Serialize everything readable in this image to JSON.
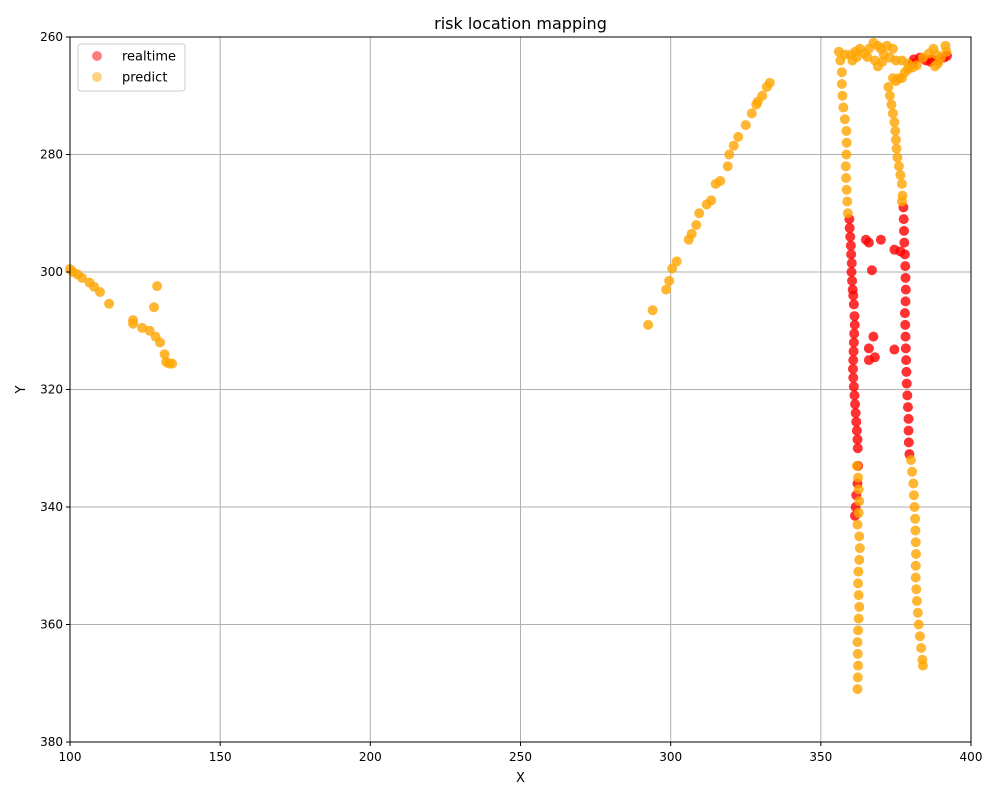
{
  "chart_data": {
    "type": "scatter",
    "title": "risk location mapping",
    "xlabel": "X",
    "ylabel": "Y",
    "xlim": [
      100,
      400
    ],
    "ylim": [
      380,
      260
    ],
    "y_inverted": true,
    "grid": true,
    "legend_position": "top-left",
    "xticks": [
      100,
      150,
      200,
      250,
      300,
      350,
      400
    ],
    "yticks": [
      260,
      280,
      300,
      320,
      340,
      360,
      380
    ],
    "series": [
      {
        "name": "realtime",
        "color": "#ff0000",
        "points": [
          [
            359.5,
            291
          ],
          [
            359.6,
            292.5
          ],
          [
            359.8,
            294
          ],
          [
            360.0,
            295.5
          ],
          [
            360.1,
            297
          ],
          [
            360.3,
            298.5
          ],
          [
            360.2,
            300
          ],
          [
            360.4,
            301.5
          ],
          [
            360.6,
            303
          ],
          [
            360.8,
            304
          ],
          [
            361.0,
            305.5
          ],
          [
            361.2,
            307.5
          ],
          [
            361.3,
            309
          ],
          [
            361.1,
            310.5
          ],
          [
            361.0,
            312
          ],
          [
            360.9,
            313.5
          ],
          [
            360.8,
            315
          ],
          [
            360.7,
            316.5
          ],
          [
            360.8,
            318
          ],
          [
            361.0,
            319.5
          ],
          [
            361.2,
            321
          ],
          [
            361.4,
            322.5
          ],
          [
            361.6,
            324
          ],
          [
            361.8,
            325.5
          ],
          [
            362.0,
            327
          ],
          [
            362.2,
            328.5
          ],
          [
            362.3,
            330
          ],
          [
            362.4,
            333
          ],
          [
            362.2,
            336
          ],
          [
            361.8,
            338
          ],
          [
            361.6,
            340
          ],
          [
            361.4,
            341.5
          ],
          [
            377.5,
            289
          ],
          [
            377.6,
            291
          ],
          [
            377.7,
            293
          ],
          [
            377.8,
            295
          ],
          [
            378.0,
            297
          ],
          [
            378.1,
            299
          ],
          [
            378.2,
            301
          ],
          [
            378.3,
            303
          ],
          [
            378.2,
            305
          ],
          [
            378.0,
            307
          ],
          [
            378.1,
            309
          ],
          [
            378.2,
            311
          ],
          [
            378.3,
            313
          ],
          [
            378.4,
            315
          ],
          [
            378.5,
            317
          ],
          [
            378.6,
            319
          ],
          [
            378.8,
            321
          ],
          [
            379.0,
            323
          ],
          [
            379.2,
            325
          ],
          [
            379.2,
            327
          ],
          [
            379.3,
            329
          ],
          [
            379.5,
            331
          ],
          [
            365.0,
            294.5
          ],
          [
            366.0,
            295
          ],
          [
            370.0,
            294.5
          ],
          [
            367.0,
            299.7
          ],
          [
            374.5,
            296.2
          ],
          [
            376.5,
            296.5
          ],
          [
            366.0,
            313
          ],
          [
            367.5,
            311
          ],
          [
            366.0,
            315
          ],
          [
            368.0,
            314.5
          ],
          [
            374.5,
            313.2
          ],
          [
            381.0,
            263.8
          ],
          [
            383.0,
            263.5
          ],
          [
            385.0,
            264
          ],
          [
            387.0,
            263.8
          ],
          [
            389.0,
            264
          ],
          [
            391.0,
            263.5
          ],
          [
            392.0,
            263.2
          ],
          [
            380.5,
            264.5
          ],
          [
            386.5,
            264.2
          ]
        ]
      },
      {
        "name": "predict",
        "color": "#ffa500",
        "points": [
          [
            100,
            299.5
          ],
          [
            101,
            300
          ],
          [
            102.5,
            300.4
          ],
          [
            104,
            301
          ],
          [
            106.5,
            301.8
          ],
          [
            108,
            302.5
          ],
          [
            110,
            303.4
          ],
          [
            113,
            305.4
          ],
          [
            121,
            308.2
          ],
          [
            121,
            308.8
          ],
          [
            124,
            309.5
          ],
          [
            126.5,
            310
          ],
          [
            128,
            306
          ],
          [
            128.5,
            311
          ],
          [
            129,
            302.4
          ],
          [
            130,
            312
          ],
          [
            131.5,
            314
          ],
          [
            132,
            315.3
          ],
          [
            133,
            315.6
          ],
          [
            134,
            315.6
          ],
          [
            292.5,
            309
          ],
          [
            294,
            306.5
          ],
          [
            298.5,
            303
          ],
          [
            299.5,
            301.5
          ],
          [
            300.5,
            299.4
          ],
          [
            302,
            298.2
          ],
          [
            306,
            294.5
          ],
          [
            307,
            293.5
          ],
          [
            308.5,
            292
          ],
          [
            309.5,
            290
          ],
          [
            312,
            288.5
          ],
          [
            313.5,
            287.8
          ],
          [
            315,
            285
          ],
          [
            316.5,
            284.5
          ],
          [
            319,
            282
          ],
          [
            319.5,
            280
          ],
          [
            321,
            278.5
          ],
          [
            322.5,
            277
          ],
          [
            325,
            275
          ],
          [
            327,
            273
          ],
          [
            328.5,
            271.5
          ],
          [
            329,
            271
          ],
          [
            330.5,
            270
          ],
          [
            332,
            268.5
          ],
          [
            333,
            267.8
          ],
          [
            356,
            262.5
          ],
          [
            356.5,
            264
          ],
          [
            357,
            266
          ],
          [
            357,
            268
          ],
          [
            357.2,
            270
          ],
          [
            357.5,
            272
          ],
          [
            358,
            274
          ],
          [
            358.5,
            276
          ],
          [
            358.6,
            278
          ],
          [
            358.5,
            280
          ],
          [
            358.3,
            282
          ],
          [
            358.4,
            284
          ],
          [
            358.6,
            286
          ],
          [
            358.8,
            288
          ],
          [
            359,
            290
          ],
          [
            358,
            263
          ],
          [
            360,
            263
          ],
          [
            361.5,
            262.5
          ],
          [
            363,
            262
          ],
          [
            364.5,
            262.8
          ],
          [
            366,
            262
          ],
          [
            367.5,
            261
          ],
          [
            369,
            261.5
          ],
          [
            370,
            262
          ],
          [
            371,
            263
          ],
          [
            372,
            261.5
          ],
          [
            373,
            263.5
          ],
          [
            374,
            262
          ],
          [
            368,
            264
          ],
          [
            369,
            265
          ],
          [
            370.5,
            264.2
          ],
          [
            365.5,
            263.4
          ],
          [
            360.5,
            264
          ],
          [
            362,
            263.4
          ],
          [
            375,
            264
          ],
          [
            377,
            264
          ],
          [
            379,
            264.5
          ],
          [
            380.5,
            265.2
          ],
          [
            382,
            264.8
          ],
          [
            384,
            263.5
          ],
          [
            386,
            262.8
          ],
          [
            387.5,
            262
          ],
          [
            388.5,
            263
          ],
          [
            389,
            264.5
          ],
          [
            390,
            263.5
          ],
          [
            391.5,
            261.5
          ],
          [
            391.8,
            262.5
          ],
          [
            388,
            265
          ],
          [
            372.5,
            268.5
          ],
          [
            373,
            270
          ],
          [
            373.5,
            271.5
          ],
          [
            374,
            273
          ],
          [
            374.5,
            274.5
          ],
          [
            374.8,
            276
          ],
          [
            375,
            277.5
          ],
          [
            375.2,
            279
          ],
          [
            375.5,
            280.5
          ],
          [
            376,
            282
          ],
          [
            376.5,
            283.5
          ],
          [
            377,
            285
          ],
          [
            377.2,
            287
          ],
          [
            377,
            288
          ],
          [
            374,
            267
          ],
          [
            375,
            267.5
          ],
          [
            376,
            267
          ],
          [
            377,
            267
          ],
          [
            378,
            266
          ],
          [
            379,
            265.5
          ],
          [
            362,
            333
          ],
          [
            362.4,
            335
          ],
          [
            362.6,
            337
          ],
          [
            362.8,
            339
          ],
          [
            362.6,
            341
          ],
          [
            362.2,
            343
          ],
          [
            362.8,
            345
          ],
          [
            363.0,
            347
          ],
          [
            362.8,
            349
          ],
          [
            362.5,
            351
          ],
          [
            362.4,
            353
          ],
          [
            362.6,
            355
          ],
          [
            362.8,
            357
          ],
          [
            362.6,
            359
          ],
          [
            362.4,
            361
          ],
          [
            362.2,
            363
          ],
          [
            362.3,
            365
          ],
          [
            362.4,
            367
          ],
          [
            362.3,
            369
          ],
          [
            362.2,
            371
          ],
          [
            380,
            332
          ],
          [
            380.4,
            334
          ],
          [
            380.8,
            336
          ],
          [
            381,
            338
          ],
          [
            381.2,
            340
          ],
          [
            381.4,
            342
          ],
          [
            381.5,
            344
          ],
          [
            381.6,
            346
          ],
          [
            381.7,
            348
          ],
          [
            381.6,
            350
          ],
          [
            381.6,
            352
          ],
          [
            381.8,
            354
          ],
          [
            382,
            356
          ],
          [
            382.3,
            358
          ],
          [
            382.6,
            360
          ],
          [
            383,
            362
          ],
          [
            383.4,
            364
          ],
          [
            383.8,
            366
          ],
          [
            384,
            367
          ]
        ]
      }
    ]
  }
}
